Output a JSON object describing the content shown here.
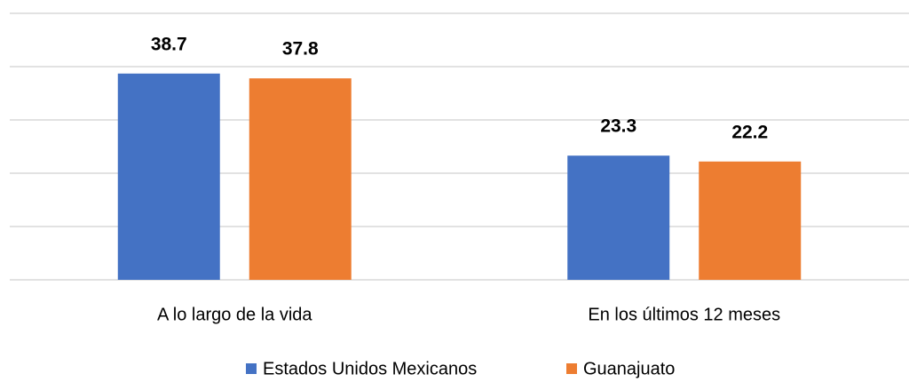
{
  "chart_data": {
    "type": "bar",
    "categories": [
      "A lo largo de la vida",
      "En los últimos 12 meses"
    ],
    "series": [
      {
        "name": "Estados Unidos Mexicanos",
        "color": "#4472c4",
        "values": [
          38.7,
          23.3
        ]
      },
      {
        "name": "Guanajuato",
        "color": "#ed7d31",
        "values": [
          37.8,
          22.2
        ]
      }
    ],
    "ylim": [
      0,
      50
    ],
    "yticks": [
      0,
      10,
      20,
      30,
      40,
      50
    ],
    "grid": true
  }
}
